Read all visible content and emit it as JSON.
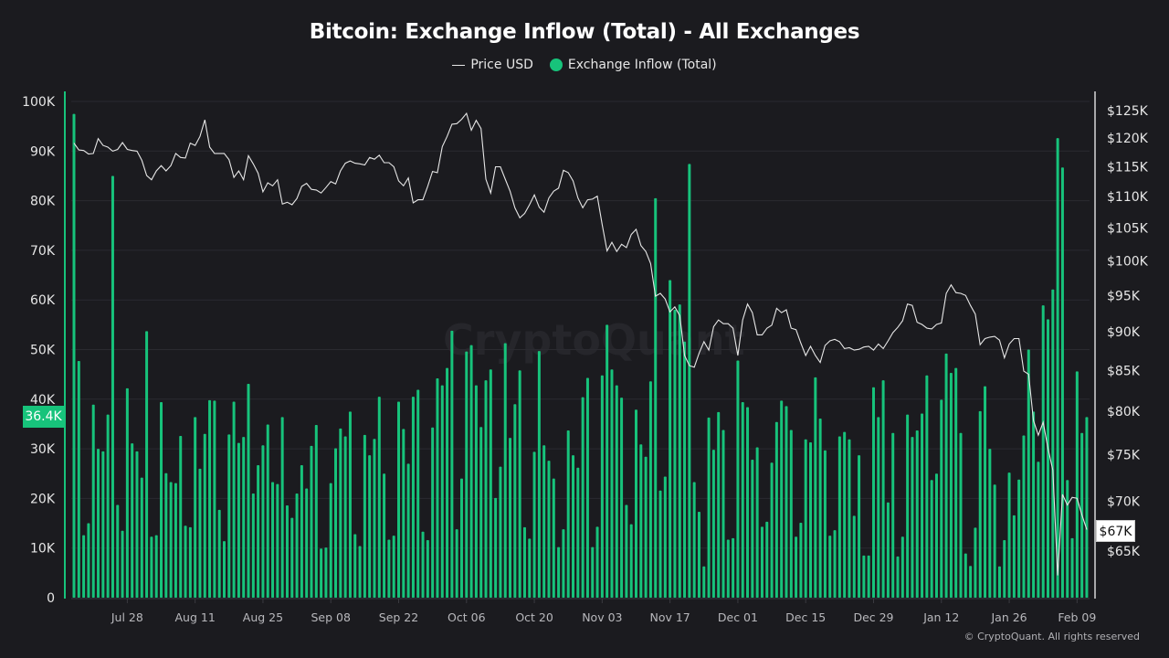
{
  "chart_data": {
    "type": "bar+line",
    "title": "Bitcoin: Exchange Inflow (Total) - All Exchanges",
    "legend": [
      {
        "name": "Price USD",
        "marker": "line",
        "color": "#e6e6e6"
      },
      {
        "name": "Exchange Inflow (Total)",
        "marker": "dot",
        "color": "#17c37b"
      }
    ],
    "legend_position": "top-center",
    "watermark": "CryptoQuant",
    "copyright": "© CryptoQuant. All rights reserved",
    "xlim": [
      "2025-07-17",
      "2026-02-11"
    ],
    "x_frequency": "daily",
    "x_ticks": [
      "Jul 28",
      "Aug 11",
      "Aug 25",
      "Sep 08",
      "Sep 22",
      "Oct 06",
      "Oct 20",
      "Nov 03",
      "Nov 17",
      "Dec 01",
      "Dec 15",
      "Dec 29",
      "Jan 12",
      "Jan 26",
      "Feb 09"
    ],
    "y_left": {
      "ylim": [
        0,
        100000
      ],
      "ticks": [
        "0",
        "10K",
        "20K",
        "30K",
        "40K",
        "50K",
        "60K",
        "70K",
        "80K",
        "90K",
        "100K"
      ],
      "current_label": "36.4K"
    },
    "y_right": {
      "scale": "log",
      "ylim": [
        65000,
        125000
      ],
      "ticks": [
        "$65K",
        "$70K",
        "$75K",
        "$80K",
        "$85K",
        "$90K",
        "$95K",
        "$100K",
        "$105K",
        "$110K",
        "$115K",
        "$120K",
        "$125K"
      ],
      "current_label": "$67K"
    },
    "grid": true,
    "series": [
      {
        "name": "Exchange Inflow (Total)",
        "type": "bar",
        "axis": "left",
        "color": "#17c37b",
        "unit": "K",
        "values": [
          97.5,
          47.7,
          12.6,
          15,
          38.9,
          30,
          29.5,
          36.9,
          85,
          18.7,
          13.5,
          42.2,
          31.1,
          29.5,
          24.2,
          53.7,
          12.3,
          12.6,
          39.4,
          25.1,
          23.3,
          23.1,
          32.6,
          14.5,
          14.2,
          36.4,
          26,
          33,
          39.8,
          39.7,
          17.7,
          11.4,
          32.9,
          39.5,
          31.2,
          32.4,
          43.1,
          21,
          26.7,
          30.7,
          34.9,
          23.3,
          22.9,
          36.4,
          18.6,
          16.1,
          21,
          26.7,
          22,
          30.6,
          34.8,
          9.9,
          10.1,
          23.1,
          30.1,
          34.1,
          32.5,
          37.5,
          12.8,
          10.4,
          32.8,
          28.7,
          32,
          40.5,
          25,
          11.7,
          12.5,
          39.5,
          34,
          27,
          40.5,
          41.9,
          13.3,
          11.6,
          34.3,
          44.2,
          42.8,
          46.3,
          53.8,
          13.8,
          24,
          49.6,
          50.9,
          42.8,
          34.4,
          43.8,
          46,
          20.1,
          26.4,
          51.3,
          32.2,
          39,
          45.8,
          14.2,
          11.9,
          29.4,
          49.7,
          30.7,
          27.6,
          24,
          10.2,
          13.8,
          33.7,
          28.7,
          26.2,
          40.4,
          44.3,
          10.2,
          14.3,
          44.8,
          55,
          46,
          42.8,
          40.3,
          18.7,
          14.8,
          37.9,
          30.9,
          28.4,
          43.6,
          80.5,
          21.6,
          24.4,
          64,
          58,
          59.1,
          51.6,
          87.4,
          23.3,
          17.3,
          6.3,
          36.3,
          29.8,
          37.4,
          33.8,
          11.7,
          12,
          47.8,
          39.4,
          38.4,
          27.8,
          30.3,
          14.3,
          15.3,
          27.2,
          35.4,
          39.7,
          38.6,
          33.8,
          12.3,
          15.1,
          31.9,
          31.3,
          44.4,
          36.1,
          29.7,
          12.5,
          13.6,
          32.5,
          33.4,
          31.9,
          16.5,
          28.7,
          8.5,
          8.5,
          42.4,
          36.4,
          43.8,
          19.2,
          33.2,
          8.3,
          12.3,
          36.9,
          32.4,
          33.7,
          37.1,
          44.8,
          23.7,
          25,
          39.9,
          49.2,
          45.3,
          46.3,
          33.2,
          8.9,
          6.4,
          14.1,
          37.6,
          42.6,
          30,
          22.8,
          6.3,
          11.6,
          25.2,
          16.6,
          23.8,
          32.7,
          50,
          37.5,
          27.4,
          58.9,
          56.1,
          62.1,
          92.6,
          86.7,
          23.7,
          12,
          45.6,
          33.2,
          36.4
        ]
      },
      {
        "name": "Price USD",
        "type": "line",
        "axis": "right",
        "color": "#e6e6e6",
        "unit": "K USD",
        "values": [
          119.1,
          117.9,
          117.8,
          117.2,
          117.3,
          119.9,
          118.7,
          118.4,
          117.7,
          118,
          119.2,
          118,
          117.8,
          117.7,
          116.1,
          113.5,
          112.8,
          114.3,
          115.2,
          114.3,
          115.2,
          117.3,
          116.6,
          116.5,
          119.1,
          118.7,
          120.3,
          123.3,
          118.4,
          117.3,
          117.3,
          117.3,
          116.2,
          113.2,
          114.3,
          112.8,
          116.9,
          115.5,
          113.9,
          110.8,
          112.3,
          111.8,
          112.8,
          108.8,
          109.1,
          108.7,
          109.7,
          111.7,
          112.2,
          111.2,
          111.1,
          110.6,
          111.5,
          112.5,
          112.1,
          114.3,
          115.6,
          116,
          115.6,
          115.5,
          115.3,
          116.6,
          116.3,
          117,
          115.7,
          115.7,
          115,
          112.6,
          111.8,
          113.1,
          109,
          109.5,
          109.5,
          111.7,
          114.2,
          114,
          118.5,
          120.3,
          122.5,
          122.6,
          123.4,
          124.5,
          121.4,
          123.2,
          121.7,
          112.9,
          110.6,
          115,
          115,
          112.9,
          110.9,
          108.2,
          106.6,
          107.3,
          108.7,
          110.3,
          108.3,
          107.5,
          109.8,
          110.9,
          111.4,
          114.4,
          114,
          112.6,
          109.8,
          108.2,
          109.5,
          109.6,
          110.1,
          105.5,
          101.5,
          102.8,
          101.4,
          102.5,
          102,
          104,
          104.8,
          102.3,
          101.4,
          99.6,
          94.9,
          95.3,
          94.5,
          92.7,
          93.4,
          92.2,
          86.9,
          85.6,
          85.4,
          87.2,
          88.7,
          87.6,
          90.7,
          91.6,
          91.1,
          91.1,
          90.5,
          86.9,
          91.6,
          93.8,
          92.6,
          89.6,
          89.6,
          90.5,
          90.9,
          93.2,
          92.6,
          93,
          90.5,
          90.3,
          88.5,
          86.9,
          88.1,
          86.9,
          86,
          88.2,
          88.8,
          89,
          88.7,
          87.8,
          87.9,
          87.6,
          87.7,
          88,
          88.1,
          87.6,
          88.4,
          87.8,
          88.8,
          89.9,
          90.6,
          91.5,
          93.8,
          93.6,
          91.3,
          91,
          90.5,
          90.4,
          91,
          91.2,
          95.3,
          96.5,
          95.4,
          95.3,
          95,
          93.6,
          92.4,
          88.3,
          89.1,
          89.3,
          89.4,
          88.9,
          86.6,
          88.4,
          89.1,
          89.1,
          84.9,
          84.5,
          78.9,
          77.2,
          78.7,
          75.7,
          73.3,
          62.7,
          70.7,
          69.6,
          70.4,
          70.3,
          68.6,
          67.1
        ]
      }
    ]
  }
}
